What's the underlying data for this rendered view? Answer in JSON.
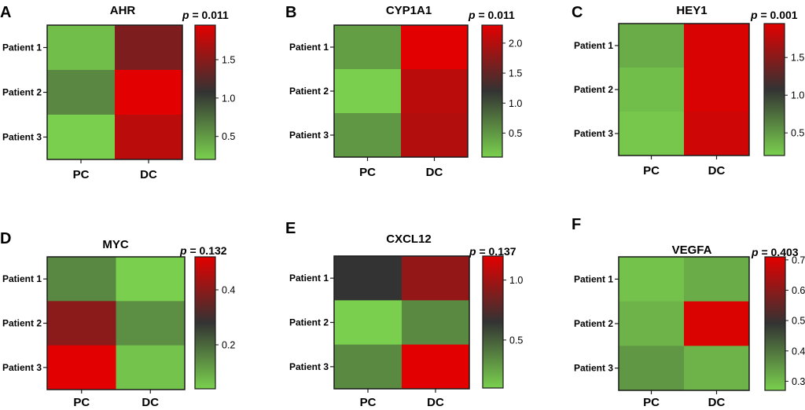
{
  "colors": {
    "low": "#7AD04E",
    "mid": "#333333",
    "high": "#E30000",
    "frame": "#1a1a1a"
  },
  "chart_data": [
    {
      "panel": "A",
      "type": "heatmap",
      "title": "AHR",
      "p_label": "p",
      "p_value": "= 0.011",
      "rows": [
        "Patient 1",
        "Patient 2",
        "Patient 3"
      ],
      "columns": [
        "PC",
        "DC"
      ],
      "values": [
        [
          0.3,
          1.45
        ],
        [
          0.6,
          1.95
        ],
        [
          0.2,
          1.75
        ]
      ],
      "vmin": 0.2,
      "vmax": 1.95,
      "colorbar_ticks": [
        "0.5",
        "1.0",
        "1.5"
      ],
      "colorbar_tick_values": [
        0.5,
        1.0,
        1.5
      ]
    },
    {
      "panel": "B",
      "type": "heatmap",
      "title": "CYP1A1",
      "p_label": "p",
      "p_value": "= 0.011",
      "rows": [
        "Patient 1",
        "Patient 2",
        "Patient 3"
      ],
      "columns": [
        "PC",
        "DC"
      ],
      "values": [
        [
          0.45,
          2.3
        ],
        [
          0.1,
          2.05
        ],
        [
          0.5,
          2.0
        ]
      ],
      "vmin": 0.1,
      "vmax": 2.3,
      "colorbar_ticks": [
        "0.5",
        "1.0",
        "1.5",
        "2.0"
      ],
      "colorbar_tick_values": [
        0.5,
        1.0,
        1.5,
        2.0
      ]
    },
    {
      "panel": "C",
      "type": "heatmap",
      "title": "HEY1",
      "p_label": "p",
      "p_value": "= 0.001",
      "rows": [
        "Patient 1",
        "Patient 2",
        "Patient 3"
      ],
      "columns": [
        "PC",
        "DC"
      ],
      "values": [
        [
          0.4,
          1.9
        ],
        [
          0.3,
          1.9
        ],
        [
          0.25,
          1.85
        ]
      ],
      "vmin": 0.2,
      "vmax": 1.95,
      "colorbar_ticks": [
        "0.5",
        "1.0",
        "1.5"
      ],
      "colorbar_tick_values": [
        0.5,
        1.0,
        1.5
      ]
    },
    {
      "panel": "D",
      "type": "heatmap",
      "title": "MYC",
      "p_label": "p",
      "p_value": "= 0.132",
      "rows": [
        "Patient 1",
        "Patient 2",
        "Patient 3"
      ],
      "columns": [
        "PC",
        "DC"
      ],
      "values": [
        [
          0.15,
          0.04
        ],
        [
          0.4,
          0.14
        ],
        [
          0.52,
          0.06
        ]
      ],
      "vmin": 0.04,
      "vmax": 0.52,
      "colorbar_ticks": [
        "0.2",
        "0.4"
      ],
      "colorbar_tick_values": [
        0.2,
        0.4
      ]
    },
    {
      "panel": "E",
      "type": "heatmap",
      "title": "CXCL12",
      "p_label": "p",
      "p_value": "= 0.137",
      "rows": [
        "Patient 1",
        "Patient 2",
        "Patient 3"
      ],
      "columns": [
        "PC",
        "DC"
      ],
      "values": [
        [
          0.65,
          0.95
        ],
        [
          0.1,
          0.35
        ],
        [
          0.35,
          1.2
        ]
      ],
      "vmin": 0.1,
      "vmax": 1.2,
      "colorbar_ticks": [
        "0.5",
        "1.0"
      ],
      "colorbar_tick_values": [
        0.5,
        1.0
      ]
    },
    {
      "panel": "F",
      "type": "heatmap",
      "title": "VEGFA",
      "p_label": "p",
      "p_value": "= 0.403",
      "rows": [
        "Patient 1",
        "Patient 2",
        "Patient 3"
      ],
      "columns": [
        "PC",
        "DC"
      ],
      "values": [
        [
          0.29,
          0.32
        ],
        [
          0.31,
          0.7
        ],
        [
          0.35,
          0.31
        ]
      ],
      "vmin": 0.27,
      "vmax": 0.71,
      "colorbar_ticks": [
        "0.3",
        "0.4",
        "0.5",
        "0.6",
        "0.7"
      ],
      "colorbar_tick_values": [
        0.3,
        0.4,
        0.5,
        0.6,
        0.7
      ]
    }
  ]
}
